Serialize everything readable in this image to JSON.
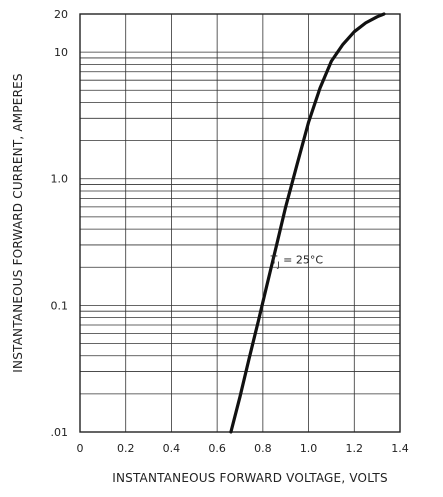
{
  "chart_data": {
    "type": "line",
    "title": "",
    "xlabel": "INSTANTANEOUS FORWARD VOLTAGE, VOLTS",
    "ylabel": "INSTANTANEOUS FORWARD CURRENT, AMPERES",
    "xlim": [
      0,
      1.4
    ],
    "ylim": [
      0.01,
      20
    ],
    "yscale": "log",
    "grid": true,
    "legend": "none",
    "x_ticks": [
      0,
      0.2,
      0.4,
      0.6,
      0.8,
      1.0,
      1.2,
      1.4
    ],
    "x_tick_labels": [
      "0",
      "0.2",
      "0.4",
      "0.6",
      "0.8",
      "1.0",
      "1.2",
      "1.4"
    ],
    "y_ticks": [
      0.01,
      0.1,
      1.0,
      10,
      20
    ],
    "y_tick_labels": [
      ".01",
      "0.1",
      "1.0",
      "10",
      "20"
    ],
    "annotation": {
      "text": "T",
      "sub": "J",
      "rest": " = 25°C",
      "x": 1.0,
      "y": 0.23
    },
    "series": [
      {
        "x": [
          0.66,
          0.7,
          0.74,
          0.78,
          0.82,
          0.86,
          0.9,
          0.95,
          1.0,
          1.05,
          1.1,
          1.15,
          1.2,
          1.25,
          1.3,
          1.33
        ],
        "values": [
          0.01,
          0.019,
          0.038,
          0.075,
          0.15,
          0.3,
          0.6,
          1.3,
          2.8,
          5.2,
          8.5,
          11.5,
          14.5,
          17.0,
          19.0,
          20.0
        ]
      }
    ],
    "colors": {
      "curve": "#111111",
      "grid": "#333333"
    }
  }
}
